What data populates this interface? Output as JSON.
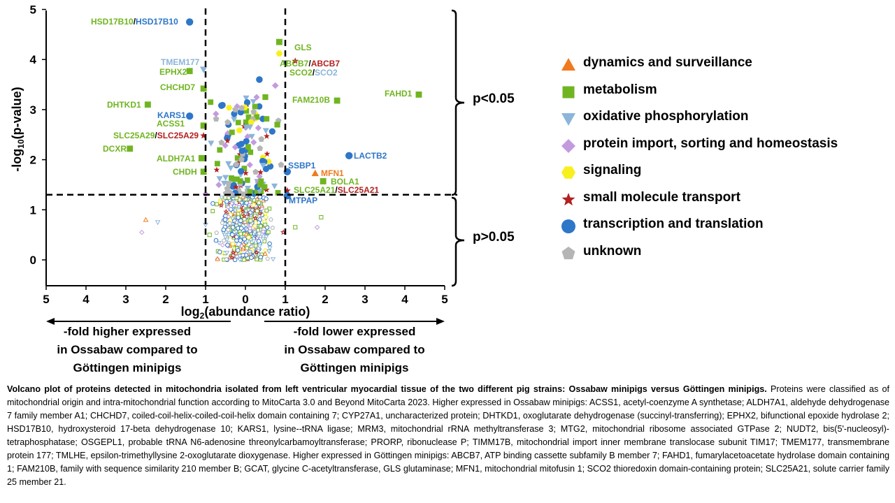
{
  "chart_data": {
    "type": "scatter",
    "xlabel": "log2(abundance ratio)",
    "ylabel": "-log10(p-value)",
    "xticks": [
      "5",
      "4",
      "3",
      "2",
      "1",
      "0",
      "1",
      "2",
      "3",
      "4",
      "5"
    ],
    "yticks": [
      "0",
      "1",
      "2",
      "3",
      "4",
      "5"
    ],
    "xlim": [
      -5,
      5
    ],
    "ylim": [
      -0.5,
      5
    ],
    "thresholds": {
      "x": [
        -1,
        1
      ],
      "y": 1.3
    },
    "significance": {
      "above": "p<0.05",
      "below": "p>0.05"
    },
    "direction_labels": {
      "left": [
        "-fold higher expressed",
        "in Ossabaw compared to",
        "Göttingen minipigs"
      ],
      "right": [
        "-fold lower expressed",
        "in Ossabaw compared to",
        "Göttingen minipigs"
      ]
    },
    "legend_position": "right",
    "categories": [
      {
        "name": "dynamics and surveillance",
        "shape": "triangle",
        "color": "#f07a1d"
      },
      {
        "name": "metabolism",
        "shape": "square",
        "color": "#70b521"
      },
      {
        "name": "oxidative phosphorylation",
        "shape": "triangle-down",
        "color": "#8cb5d9"
      },
      {
        "name": "protein import, sorting and homeostasis",
        "shape": "diamond",
        "color": "#c49ade"
      },
      {
        "name": "signaling",
        "shape": "hexagon",
        "color": "#f8f01e"
      },
      {
        "name": "small molecule transport",
        "shape": "star",
        "color": "#b41f1f"
      },
      {
        "name": "transcription and translation",
        "shape": "circle",
        "color": "#2e76c8"
      },
      {
        "name": "unknown",
        "shape": "pentagon",
        "color": "#b5b5b5"
      }
    ],
    "labeled_points": [
      {
        "label": "HSD17B10",
        "label2": "HSD17B10",
        "color": "#70b521",
        "color2": "#2e76c8",
        "x": -1.4,
        "y": 4.75,
        "cat": 6
      },
      {
        "label": "TMEM177",
        "color": "#8cb5d9",
        "x": -1.05,
        "y": 3.8,
        "cat": 2
      },
      {
        "label": "EPHX2",
        "color": "#70b521",
        "x": -1.4,
        "y": 3.77,
        "cat": 1
      },
      {
        "label": "CHCHD7",
        "color": "#70b521",
        "x": -1.05,
        "y": 3.42,
        "cat": 1
      },
      {
        "label": "DHTKD1",
        "color": "#70b521",
        "x": -2.45,
        "y": 3.1,
        "cat": 1
      },
      {
        "label": "KARS1",
        "color": "#2e76c8",
        "x": -1.4,
        "y": 2.87,
        "cat": 6
      },
      {
        "label": "ACSS1",
        "color": "#70b521",
        "x": -1.05,
        "y": 2.68,
        "cat": 1
      },
      {
        "label": "SLC25A29",
        "label2": "SLC25A29",
        "color": "#70b521",
        "color2": "#b41f1f",
        "x": -1.05,
        "y": 2.48,
        "cat": 5
      },
      {
        "label": "DCXR",
        "color": "#70b521",
        "x": -2.9,
        "y": 2.22,
        "cat": 1
      },
      {
        "label": "ALDH7A1",
        "color": "#70b521",
        "x": -1.1,
        "y": 2.03,
        "cat": 1
      },
      {
        "label": "CHDH",
        "color": "#70b521",
        "x": -1.05,
        "y": 1.76,
        "cat": 1
      },
      {
        "label": "GLS",
        "color": "#70b521",
        "x": 0.85,
        "y": 4.35,
        "cat": 1
      },
      {
        "label": "ABCB7",
        "label2": "ABCB7",
        "color": "#70b521",
        "color2": "#b41f1f",
        "x": 1.25,
        "y": 3.97,
        "cat": 5
      },
      {
        "label": "SCO2",
        "label2": "SCO2",
        "color": "#70b521",
        "color2": "#8cb5d9",
        "x": 1.0,
        "y": 3.93,
        "cat": 2
      },
      {
        "label": "FAM210B",
        "color": "#70b521",
        "x": 2.3,
        "y": 3.18,
        "cat": 1
      },
      {
        "label": "FAHD1",
        "color": "#70b521",
        "x": 4.35,
        "y": 3.3,
        "cat": 1
      },
      {
        "label": "LACTB2",
        "color": "#2e76c8",
        "x": 2.6,
        "y": 2.08,
        "cat": 6
      },
      {
        "label": "SSBP1",
        "color": "#2e76c8",
        "x": 1.05,
        "y": 1.76,
        "cat": 6
      },
      {
        "label": "MFN1",
        "color": "#f07a1d",
        "x": 1.75,
        "y": 1.73,
        "cat": 0
      },
      {
        "label": "BOLA1",
        "color": "#70b521",
        "x": 1.95,
        "y": 1.57,
        "cat": 1
      },
      {
        "label": "SLC25A21",
        "label2": "SLC25A21",
        "color": "#70b521",
        "color2": "#b41f1f",
        "x": 1.05,
        "y": 1.38,
        "cat": 5
      },
      {
        "label": "MTPAP",
        "color": "#2e76c8",
        "x": 1.05,
        "y": 1.28,
        "cat": 6
      }
    ]
  },
  "caption": {
    "title": "Volcano plot of proteins detected in mitochondria isolated from left ventricular myocardial tissue of the two different pig strains: Ossabaw minipigs versus Göttingen minipigs.",
    "text": " Proteins were classified as of mitochondrial origin and intra-mitochondrial function according to MitoCarta 3.0 and Beyond MitoCarta 2023. Higher expressed in Ossabaw minipigs: ACSS1, acetyl-coenzyme A synthetase; ALDH7A1, aldehyde dehydrogenase 7 family member A1; CHCHD7, coiled-coil-helix-coiled-coil-helix domain containing 7; CYP27A1, uncharacterized protein; DHTKD1, oxoglutarate dehydrogenase (succinyl-transferring); EPHX2, bifunctional epoxide hydrolase 2; HSD17B10, hydroxysteroid 17-beta dehydrogenase 10; KARS1, lysine--tRNA ligase; MRM3, mitochondrial rRNA methyltransferase 3; MTG2, mitochondrial ribosome associated GTPase 2; NUDT2, bis(5'-nucleosyl)-tetraphosphatase; OSGEPL1, probable tRNA N6-adenosine threonylcarbamoyltransferase; PRORP, ribonuclease P; TIMM17B, mitochondrial import inner membrane translocase subunit TIM17; TMEM177, transmembrane protein 177; TMLHE, epsilon-trimethyllysine 2-oxoglutarate dioxygenase. Higher expressed in Göttingen minipigs: ABCB7, ATP binding cassette subfamily B member 7; FAHD1, fumarylacetoacetate hydrolase domain containing 1; FAM210B, family with sequence similarity 210 member B; GCAT, glycine C-acetyltransferase, GLS glutaminase; MFN1, mitochondrial mitofusin 1; SCO2 thioredoxin domain-containing protein; SLC25A21, solute carrier family 25 member 21."
  }
}
